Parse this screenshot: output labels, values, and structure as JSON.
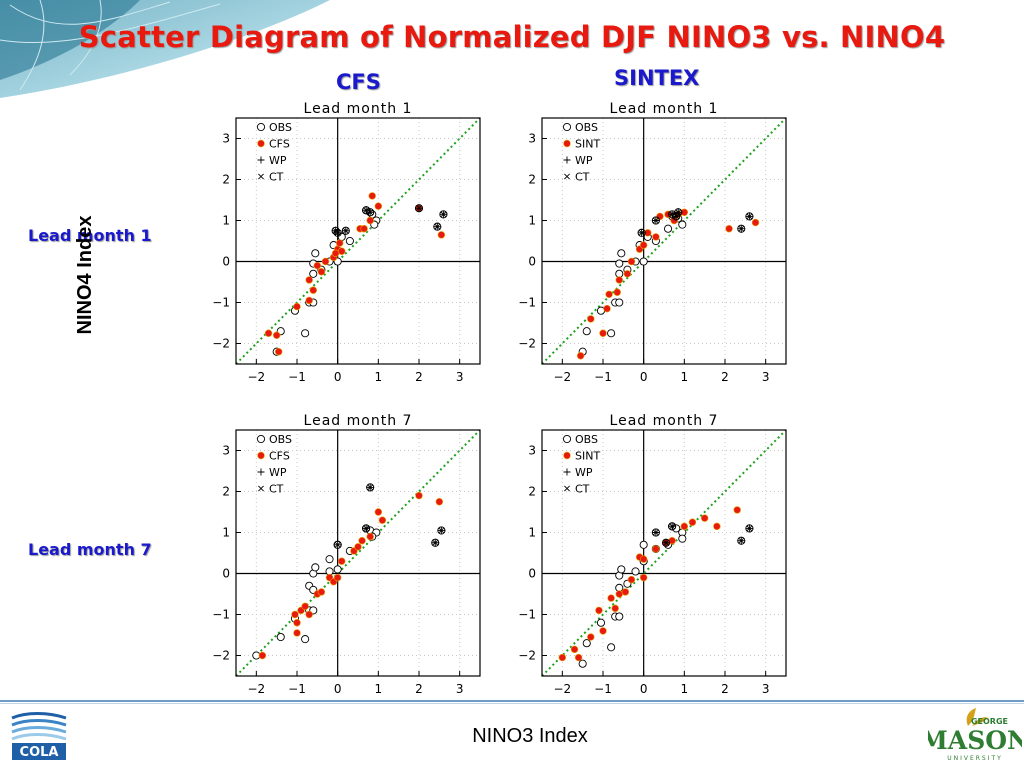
{
  "slide": {
    "title": "Scatter Diagram of Normalized DJF NINO3 vs. NINO4",
    "col_left": "CFS",
    "col_right": "SINTEX",
    "row_top": "Lead month 1",
    "row_bottom": "Lead month 7",
    "y_title": "NINO4 Index",
    "x_title": "NINO3 Index",
    "logo_left": "COLA",
    "logo_right_top": "GEORGE",
    "logo_right_main": "MASON",
    "logo_right_bottom": "UNIVERSITY"
  },
  "colors": {
    "title": "#e8190f",
    "heading": "#1a1acc",
    "model_marker": "#e8190f",
    "reference_line": "#1fa01f",
    "rule": "#6f9cc8",
    "mason_green": "#2e7d32",
    "mason_gold": "#d4a017"
  },
  "icons": {
    "obs": "open-circle",
    "model": "filled-red-circle",
    "wp": "plus-marker",
    "ct": "x-marker"
  },
  "chart_data": [
    {
      "type": "scatter",
      "title": "Lead month 1",
      "xlim": [
        -2.5,
        3.5
      ],
      "ylim": [
        -2.5,
        3.5
      ],
      "xticks": [
        -2,
        -1,
        0,
        1,
        2,
        3
      ],
      "yticks": [
        -2,
        -1,
        0,
        1,
        2,
        3
      ],
      "xticklabels": [
        "−2",
        "−1",
        "0",
        "1",
        "2",
        "3"
      ],
      "yticklabels": [
        "−2",
        "−1",
        "0",
        "1",
        "2",
        "3"
      ],
      "grid": true,
      "legend": "top-left",
      "reference_line": "y = x",
      "legend_entries": [
        "OBS",
        "CFS",
        "WP",
        "CT"
      ],
      "series": [
        {
          "name": "OBS",
          "marker": "open-circle",
          "points": [
            [
              -1.5,
              -2.2
            ],
            [
              -1.4,
              -1.7
            ],
            [
              -0.8,
              -1.75
            ],
            [
              -1.05,
              -1.2
            ],
            [
              -0.7,
              -1.0
            ],
            [
              -0.6,
              -1.0
            ],
            [
              -0.6,
              -0.3
            ],
            [
              -0.4,
              -0.2
            ],
            [
              -0.6,
              -0.05
            ],
            [
              -0.55,
              0.2
            ],
            [
              -0.2,
              0.0
            ],
            [
              0.0,
              0.0
            ],
            [
              0.1,
              0.6
            ],
            [
              0.3,
              0.5
            ],
            [
              -0.1,
              0.4
            ],
            [
              0.7,
              1.25
            ],
            [
              0.85,
              1.15
            ],
            [
              0.95,
              1.0
            ],
            [
              0.9,
              0.9
            ]
          ]
        },
        {
          "name": "CFS",
          "marker": "filled-red",
          "points": [
            [
              -1.7,
              -1.75
            ],
            [
              -1.5,
              -1.8
            ],
            [
              -1.45,
              -2.2
            ],
            [
              -1.0,
              -1.1
            ],
            [
              -0.7,
              -0.95
            ],
            [
              -0.6,
              -0.7
            ],
            [
              -0.7,
              -0.45
            ],
            [
              -0.4,
              -0.25
            ],
            [
              -0.5,
              -0.1
            ],
            [
              -0.3,
              0.0
            ],
            [
              -0.1,
              0.1
            ],
            [
              0.0,
              0.3
            ],
            [
              0.05,
              0.45
            ],
            [
              -0.05,
              0.2
            ],
            [
              0.1,
              0.25
            ],
            [
              0.55,
              0.8
            ],
            [
              0.65,
              0.8
            ],
            [
              0.8,
              1.0
            ],
            [
              0.85,
              1.6
            ],
            [
              1.0,
              1.35
            ],
            [
              2.0,
              1.3
            ],
            [
              2.55,
              0.65
            ]
          ]
        },
        {
          "name": "WP",
          "marker": "plus",
          "points": [
            [
              -0.05,
              0.75
            ],
            [
              0.0,
              0.7
            ],
            [
              0.2,
              0.75
            ],
            [
              0.7,
              1.25
            ],
            [
              0.8,
              1.2
            ],
            [
              2.0,
              1.3
            ],
            [
              2.45,
              0.85
            ],
            [
              2.6,
              1.15
            ]
          ]
        },
        {
          "name": "CT",
          "marker": "x",
          "points": [
            [
              -0.05,
              0.75
            ],
            [
              0.0,
              0.7
            ],
            [
              0.2,
              0.75
            ],
            [
              0.7,
              1.25
            ],
            [
              0.8,
              1.2
            ],
            [
              2.0,
              1.3
            ],
            [
              2.45,
              0.85
            ],
            [
              2.6,
              1.15
            ]
          ]
        }
      ]
    },
    {
      "type": "scatter",
      "title": "Lead month 1",
      "xlim": [
        -2.5,
        3.5
      ],
      "ylim": [
        -2.5,
        3.5
      ],
      "xticks": [
        -2,
        -1,
        0,
        1,
        2,
        3
      ],
      "yticks": [
        -2,
        -1,
        0,
        1,
        2,
        3
      ],
      "xticklabels": [
        "−2",
        "−1",
        "0",
        "1",
        "2",
        "3"
      ],
      "yticklabels": [
        "−2",
        "−1",
        "0",
        "1",
        "2",
        "3"
      ],
      "grid": true,
      "legend": "top-left",
      "reference_line": "y = x",
      "legend_entries": [
        "OBS",
        "SINT",
        "WP",
        "CT"
      ],
      "series": [
        {
          "name": "OBS",
          "marker": "open-circle",
          "points": [
            [
              -1.5,
              -2.2
            ],
            [
              -1.4,
              -1.7
            ],
            [
              -0.8,
              -1.75
            ],
            [
              -1.05,
              -1.2
            ],
            [
              -0.7,
              -1.0
            ],
            [
              -0.6,
              -1.0
            ],
            [
              -0.6,
              -0.3
            ],
            [
              -0.4,
              -0.2
            ],
            [
              -0.6,
              -0.05
            ],
            [
              -0.55,
              0.2
            ],
            [
              -0.2,
              0.0
            ],
            [
              0.0,
              0.0
            ],
            [
              0.1,
              0.6
            ],
            [
              0.3,
              0.5
            ],
            [
              -0.1,
              0.4
            ],
            [
              0.7,
              1.1
            ],
            [
              0.85,
              1.05
            ],
            [
              0.95,
              0.9
            ],
            [
              0.6,
              0.8
            ]
          ]
        },
        {
          "name": "SINT",
          "marker": "filled-red",
          "points": [
            [
              -1.55,
              -2.3
            ],
            [
              -1.3,
              -1.4
            ],
            [
              -1.0,
              -1.75
            ],
            [
              -0.9,
              -1.15
            ],
            [
              -0.85,
              -0.8
            ],
            [
              -0.65,
              -0.75
            ],
            [
              -0.6,
              -0.45
            ],
            [
              -0.4,
              -0.3
            ],
            [
              -0.3,
              0.0
            ],
            [
              -0.1,
              0.3
            ],
            [
              0.0,
              0.4
            ],
            [
              0.1,
              0.7
            ],
            [
              0.3,
              0.6
            ],
            [
              0.4,
              1.1
            ],
            [
              0.6,
              1.15
            ],
            [
              0.75,
              1.0
            ],
            [
              0.85,
              1.15
            ],
            [
              1.0,
              1.2
            ],
            [
              2.1,
              0.8
            ],
            [
              2.75,
              0.95
            ]
          ]
        },
        {
          "name": "WP",
          "marker": "plus",
          "points": [
            [
              -0.05,
              0.7
            ],
            [
              0.3,
              1.0
            ],
            [
              0.7,
              1.15
            ],
            [
              0.8,
              1.1
            ],
            [
              0.85,
              1.2
            ],
            [
              2.4,
              0.8
            ],
            [
              2.6,
              1.1
            ]
          ]
        },
        {
          "name": "CT",
          "marker": "x",
          "points": [
            [
              -0.05,
              0.7
            ],
            [
              0.3,
              1.0
            ],
            [
              0.7,
              1.15
            ],
            [
              0.8,
              1.1
            ],
            [
              0.85,
              1.2
            ],
            [
              2.4,
              0.8
            ],
            [
              2.6,
              1.1
            ]
          ]
        }
      ]
    },
    {
      "type": "scatter",
      "title": "Lead month 7",
      "xlim": [
        -2.5,
        3.5
      ],
      "ylim": [
        -2.5,
        3.5
      ],
      "xticks": [
        -2,
        -1,
        0,
        1,
        2,
        3
      ],
      "yticks": [
        -2,
        -1,
        0,
        1,
        2,
        3
      ],
      "xticklabels": [
        "−2",
        "−1",
        "0",
        "1",
        "2",
        "3"
      ],
      "yticklabels": [
        "−2",
        "−1",
        "0",
        "1",
        "2",
        "3"
      ],
      "grid": true,
      "legend": "top-left",
      "reference_line": "y = x",
      "legend_entries": [
        "OBS",
        "CFS",
        "WP",
        "CT"
      ],
      "series": [
        {
          "name": "OBS",
          "marker": "open-circle",
          "points": [
            [
              -2.0,
              -2.0
            ],
            [
              -1.4,
              -1.55
            ],
            [
              -0.8,
              -1.6
            ],
            [
              -1.05,
              -1.1
            ],
            [
              -0.7,
              -0.9
            ],
            [
              -0.6,
              -0.9
            ],
            [
              -0.7,
              -0.3
            ],
            [
              -0.6,
              -0.4
            ],
            [
              -0.6,
              0.0
            ],
            [
              -0.55,
              0.15
            ],
            [
              -0.2,
              0.05
            ],
            [
              0.0,
              0.1
            ],
            [
              0.0,
              0.7
            ],
            [
              0.3,
              0.55
            ],
            [
              -0.2,
              0.35
            ],
            [
              0.7,
              1.1
            ],
            [
              0.8,
              1.05
            ],
            [
              0.95,
              1.0
            ],
            [
              0.85,
              0.9
            ]
          ]
        },
        {
          "name": "CFS",
          "marker": "filled-red",
          "points": [
            [
              -1.85,
              -2.0
            ],
            [
              -1.05,
              -1.0
            ],
            [
              -1.0,
              -1.2
            ],
            [
              -0.9,
              -0.9
            ],
            [
              -1.0,
              -1.45
            ],
            [
              -0.8,
              -0.8
            ],
            [
              -0.7,
              -1.0
            ],
            [
              -0.5,
              -0.5
            ],
            [
              -0.4,
              -0.45
            ],
            [
              -0.2,
              -0.1
            ],
            [
              -0.1,
              -0.2
            ],
            [
              0.0,
              -0.1
            ],
            [
              0.1,
              0.3
            ],
            [
              0.4,
              0.55
            ],
            [
              0.5,
              0.65
            ],
            [
              0.6,
              0.8
            ],
            [
              0.8,
              0.9
            ],
            [
              1.0,
              1.5
            ],
            [
              1.1,
              1.3
            ],
            [
              2.0,
              1.9
            ],
            [
              2.5,
              1.75
            ]
          ]
        },
        {
          "name": "WP",
          "marker": "plus",
          "points": [
            [
              0.0,
              0.7
            ],
            [
              0.7,
              1.1
            ],
            [
              0.8,
              2.1
            ],
            [
              2.4,
              0.75
            ],
            [
              2.55,
              1.05
            ]
          ]
        },
        {
          "name": "CT",
          "marker": "x",
          "points": [
            [
              0.0,
              0.7
            ],
            [
              0.7,
              1.1
            ],
            [
              0.8,
              2.1
            ],
            [
              2.4,
              0.75
            ],
            [
              2.55,
              1.05
            ]
          ]
        }
      ]
    },
    {
      "type": "scatter",
      "title": "Lead month 7",
      "xlim": [
        -2.5,
        3.5
      ],
      "ylim": [
        -2.5,
        3.5
      ],
      "xticks": [
        -2,
        -1,
        0,
        1,
        2,
        3
      ],
      "yticks": [
        -2,
        -1,
        0,
        1,
        2,
        3
      ],
      "xticklabels": [
        "−2",
        "−1",
        "0",
        "1",
        "2",
        "3"
      ],
      "yticklabels": [
        "−2",
        "−1",
        "0",
        "1",
        "2",
        "3"
      ],
      "grid": true,
      "legend": "top-left",
      "reference_line": "y = x",
      "legend_entries": [
        "OBS",
        "SINT",
        "WP",
        "CT"
      ],
      "series": [
        {
          "name": "OBS",
          "marker": "open-circle",
          "points": [
            [
              -1.5,
              -2.2
            ],
            [
              -1.4,
              -1.7
            ],
            [
              -0.8,
              -1.8
            ],
            [
              -1.05,
              -1.2
            ],
            [
              -0.7,
              -1.05
            ],
            [
              -0.6,
              -1.05
            ],
            [
              -0.6,
              -0.35
            ],
            [
              -0.4,
              -0.25
            ],
            [
              -0.6,
              -0.05
            ],
            [
              -0.55,
              0.1
            ],
            [
              -0.2,
              0.05
            ],
            [
              0.0,
              0.3
            ],
            [
              0.0,
              0.7
            ],
            [
              0.3,
              0.6
            ],
            [
              0.6,
              0.7
            ],
            [
              0.7,
              1.15
            ],
            [
              0.8,
              1.1
            ],
            [
              0.95,
              1.0
            ],
            [
              0.95,
              0.85
            ]
          ]
        },
        {
          "name": "SINT",
          "marker": "filled-red",
          "points": [
            [
              -2.0,
              -2.05
            ],
            [
              -1.7,
              -1.85
            ],
            [
              -1.6,
              -2.05
            ],
            [
              -1.3,
              -1.55
            ],
            [
              -1.0,
              -1.4
            ],
            [
              -1.1,
              -0.9
            ],
            [
              -0.8,
              -0.6
            ],
            [
              -0.7,
              -0.85
            ],
            [
              -0.6,
              -0.5
            ],
            [
              -0.45,
              -0.45
            ],
            [
              -0.3,
              -0.15
            ],
            [
              -0.1,
              0.4
            ],
            [
              0.0,
              0.35
            ],
            [
              0.0,
              -0.1
            ],
            [
              0.3,
              0.6
            ],
            [
              0.55,
              0.75
            ],
            [
              0.7,
              0.8
            ],
            [
              1.0,
              1.15
            ],
            [
              1.2,
              1.25
            ],
            [
              1.5,
              1.35
            ],
            [
              1.8,
              1.15
            ],
            [
              2.3,
              1.55
            ]
          ]
        },
        {
          "name": "WP",
          "marker": "plus",
          "points": [
            [
              0.3,
              1.0
            ],
            [
              0.55,
              0.75
            ],
            [
              0.7,
              1.15
            ],
            [
              2.4,
              0.8
            ],
            [
              2.6,
              1.1
            ]
          ]
        },
        {
          "name": "CT",
          "marker": "x",
          "points": [
            [
              0.3,
              1.0
            ],
            [
              0.55,
              0.75
            ],
            [
              0.7,
              1.15
            ],
            [
              2.4,
              0.8
            ],
            [
              2.6,
              1.1
            ]
          ]
        }
      ]
    }
  ]
}
